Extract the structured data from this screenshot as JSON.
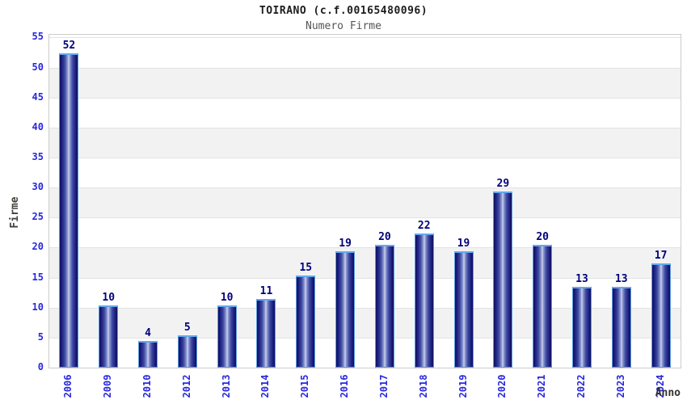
{
  "chart_data": {
    "type": "bar",
    "title": "TOIRANO (c.f.00165480096)",
    "subtitle": "Numero Firme",
    "xlabel": "Anno",
    "ylabel": "Firme",
    "categories": [
      "2006",
      "2009",
      "2010",
      "2012",
      "2013",
      "2014",
      "2015",
      "2016",
      "2017",
      "2018",
      "2019",
      "2020",
      "2021",
      "2022",
      "2023",
      "2024"
    ],
    "values": [
      52,
      10,
      4,
      5,
      10,
      11,
      15,
      19,
      20,
      22,
      19,
      29,
      20,
      13,
      13,
      17
    ],
    "ylim": [
      0,
      55
    ],
    "ytick_step": 5,
    "legend": "none",
    "grid": "horizontal gridlines with alternating white/gray bands every 5 units",
    "colors": {
      "tick_label": "#2828dc",
      "value_label": "#00007a",
      "bar_dark": "#0f0f5e",
      "bar_mid": "#3d49a0",
      "bar_light": "#cdd3ee",
      "bar_border": "#5e9fe0",
      "band_gray": "#f2f2f2",
      "band_white": "#ffffff",
      "gridline": "#e3e3e3",
      "plot_border": "#cccccc",
      "title_color": "#1c1c1c",
      "subtitle_color": "#555555",
      "axis_title_color": "#45413d"
    }
  }
}
